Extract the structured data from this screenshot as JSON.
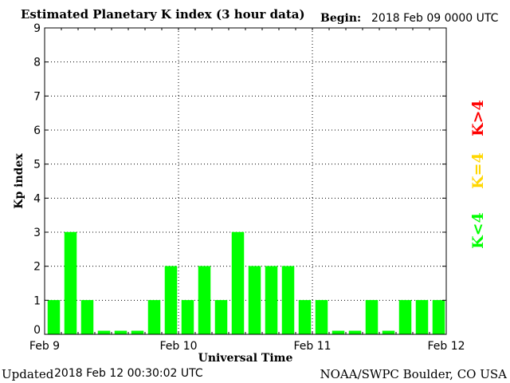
{
  "header": {
    "title": "Estimated Planetary K index (3 hour data)",
    "begin_label": "Begin:",
    "begin_value": "2018 Feb 09 0000 UTC"
  },
  "footer": {
    "updated_label": "Updated",
    "updated_value": "2018 Feb 12 00:30:02 UTC",
    "source": "NOAA/SWPC Boulder, CO USA"
  },
  "legend": {
    "gt4": {
      "label": "K>4",
      "color": "#ff0000"
    },
    "eq4": {
      "label": "K=4",
      "color": "#ffd700"
    },
    "lt4": {
      "label": "K<4",
      "color": "#00ff00"
    }
  },
  "chart_data": {
    "type": "bar",
    "title": "Estimated Planetary K index (3 hour data)",
    "xlabel": "Universal Time",
    "ylabel": "Kp index",
    "ylim": [
      0,
      9
    ],
    "yticks": [
      "0",
      "1",
      "2",
      "3",
      "4",
      "5",
      "6",
      "7",
      "8",
      "9"
    ],
    "xtick_labels": [
      "Feb 9",
      "Feb 10",
      "Feb 11",
      "Feb 12"
    ],
    "interval_hours": 3,
    "grid": "dotted",
    "bar_color": "#00ff00",
    "values": [
      1,
      3,
      1,
      0.1,
      0.1,
      0.1,
      1,
      2,
      1,
      2,
      1,
      3,
      2,
      2,
      2,
      1,
      1,
      0.1,
      0.1,
      1,
      0.1,
      1,
      1,
      1
    ]
  }
}
